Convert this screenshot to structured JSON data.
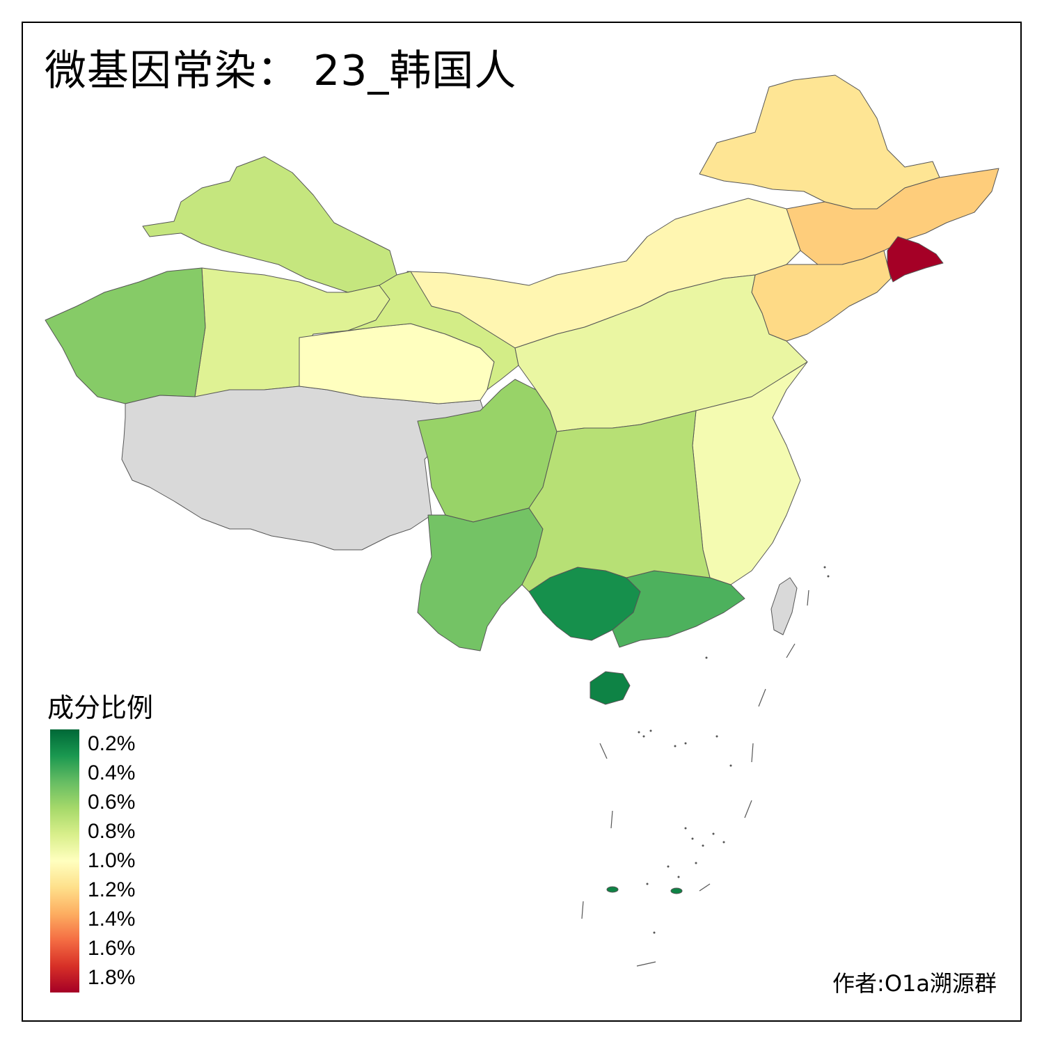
{
  "title": "微基因常染： 23_韩国人",
  "legend": {
    "title": "成分比例",
    "ticks": [
      "0.2%",
      "0.4%",
      "0.6%",
      "0.8%",
      "1.0%",
      "1.2%",
      "1.4%",
      "1.6%",
      "1.8%"
    ],
    "min_value": 0.1,
    "max_value": 1.9,
    "colors": [
      "#006837",
      "#1a9850",
      "#66bd63",
      "#a6d96a",
      "#d9ef8b",
      "#ffffbf",
      "#fee08b",
      "#fdae61",
      "#f46d43",
      "#d73027",
      "#a50026"
    ]
  },
  "credit": "作者:O1a溯源群",
  "no_data_color": "#d9d9d9",
  "regions": [
    {
      "name": "heilongjiang",
      "value": 1.15
    },
    {
      "name": "jilin",
      "value": 1.25
    },
    {
      "name": "yanbian",
      "value": 1.9
    },
    {
      "name": "liaoning",
      "value": 1.2
    },
    {
      "name": "inner-mongolia",
      "value": 1.05
    },
    {
      "name": "xinjiang-north",
      "value": 0.75
    },
    {
      "name": "xinjiang-south",
      "value": 0.85
    },
    {
      "name": "xinjiang-west",
      "value": 0.55
    },
    {
      "name": "tibet",
      "value": null
    },
    {
      "name": "qinghai",
      "value": 1.0
    },
    {
      "name": "gansu",
      "value": 0.8
    },
    {
      "name": "sichuan",
      "value": 0.6
    },
    {
      "name": "yunnan",
      "value": 0.5
    },
    {
      "name": "guangxi",
      "value": 0.25
    },
    {
      "name": "guangdong",
      "value": 0.4
    },
    {
      "name": "hainan",
      "value": 0.2
    },
    {
      "name": "north-plain",
      "value": 0.9
    },
    {
      "name": "east-coast",
      "value": 0.95
    },
    {
      "name": "central-south",
      "value": 0.7
    },
    {
      "name": "taiwan",
      "value": null
    }
  ]
}
